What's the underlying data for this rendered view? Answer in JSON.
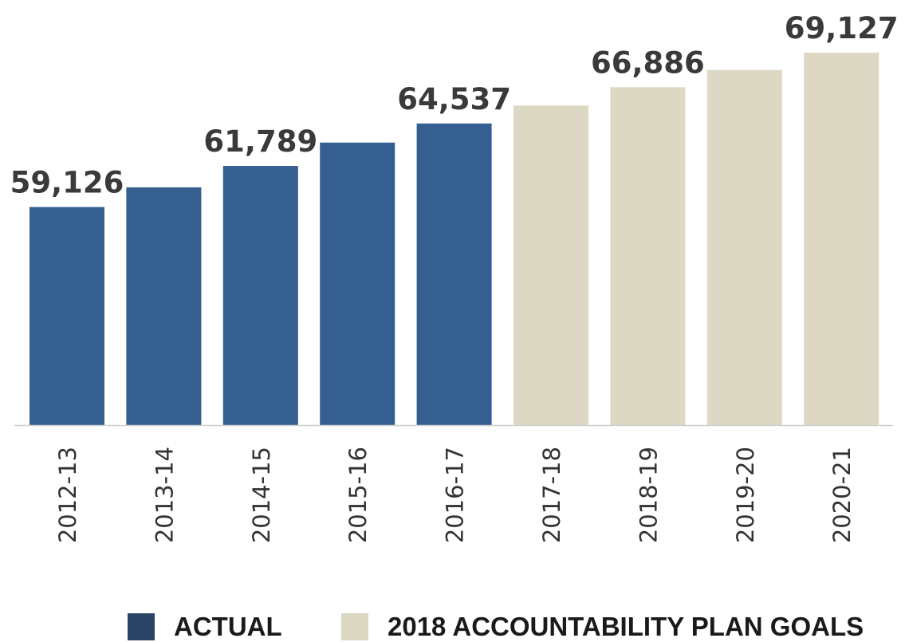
{
  "chart_data": {
    "type": "bar",
    "categories": [
      "2012-13",
      "2013-14",
      "2014-15",
      "2015-16",
      "2016-17",
      "2017-18",
      "2018-19",
      "2019-20",
      "2020-21"
    ],
    "values": [
      59126,
      60400,
      61789,
      63300,
      64537,
      65700,
      66886,
      68000,
      69127
    ],
    "data_labels": [
      "59,126",
      "",
      "61,789",
      "",
      "64,537",
      "",
      "66,886",
      "",
      "69,127"
    ],
    "bar_groups": [
      "actual",
      "actual",
      "actual",
      "actual",
      "actual",
      "goal",
      "goal",
      "goal",
      "goal"
    ],
    "ylim": [
      0,
      71000
    ],
    "grid": false,
    "legend_position": "bottom",
    "colors": {
      "actual": "#355f91",
      "goal": "#ddd8c3",
      "legend_actual": "#2c4466",
      "label_text": "#3a3a3a",
      "tick_text": "#333333",
      "axis_line": "#cfcfcf"
    },
    "legend": [
      {
        "key": "actual",
        "label": "ACTUAL"
      },
      {
        "key": "goal",
        "label": "2018 ACCOUNTABILITY PLAN GOALS"
      }
    ]
  }
}
